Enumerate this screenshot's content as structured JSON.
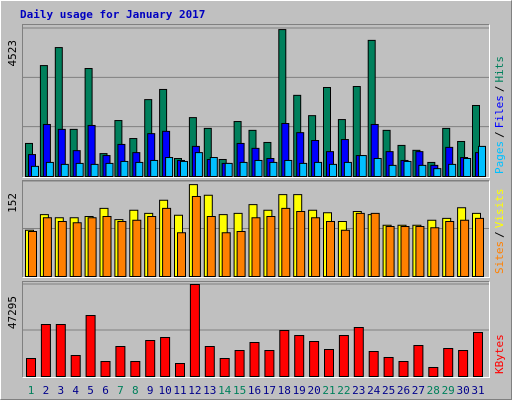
{
  "chart_data": [
    {
      "type": "bar",
      "title": "Daily usage for January 2017",
      "ylim": [
        0,
        4523
      ],
      "yticks": [
        4523
      ],
      "grid_divisions": 3,
      "legend_separator": "/",
      "series": [
        {
          "name": "Pages",
          "color": "#00c0ff",
          "values": [
            310,
            430,
            370,
            400,
            370,
            400,
            460,
            430,
            490,
            580,
            460,
            730,
            580,
            400,
            430,
            490,
            430,
            490,
            400,
            430,
            370,
            430,
            640,
            550,
            340,
            460,
            340,
            240,
            370,
            550,
            920
          ]
        },
        {
          "name": "Files",
          "color": "#0000ff",
          "values": [
            670,
            1590,
            1440,
            790,
            1560,
            640,
            980,
            730,
            1310,
            1380,
            490,
            920,
            520,
            400,
            1010,
            860,
            550,
            1620,
            1340,
            1100,
            760,
            1130,
            640,
            1590,
            760,
            490,
            760,
            340,
            890,
            580,
            730
          ]
        },
        {
          "name": "Hits",
          "color": "#00805c",
          "values": [
            1010,
            3390,
            3940,
            1440,
            3300,
            700,
            1710,
            1160,
            2350,
            2660,
            550,
            1800,
            1470,
            520,
            1680,
            1410,
            1040,
            4490,
            2480,
            1860,
            2720,
            1740,
            2750,
            4160,
            1410,
            950,
            800,
            430,
            1470,
            1070,
            2170
          ]
        }
      ]
    },
    {
      "type": "bar",
      "ylim": [
        0,
        152
      ],
      "yticks": [
        152
      ],
      "grid_divisions": 2,
      "legend_separator": "/",
      "series": [
        {
          "name": "Sites",
          "color": "#ff8000",
          "values": [
            72,
            94,
            88,
            86,
            94,
            96,
            88,
            90,
            96,
            109,
            70,
            128,
            96,
            70,
            72,
            94,
            96,
            109,
            104,
            94,
            88,
            74,
            101,
            101,
            80,
            80,
            80,
            78,
            88,
            90,
            93
          ]
        },
        {
          "name": "Visits",
          "color": "#ffff00",
          "values": [
            74,
            99,
            94,
            94,
            96,
            109,
            91,
            106,
            101,
            122,
            98,
            147,
            130,
            99,
            101,
            115,
            106,
            131,
            131,
            106,
            102,
            88,
            104,
            99,
            82,
            82,
            82,
            90,
            93,
            110,
            101
          ]
        }
      ]
    },
    {
      "type": "bar",
      "ylim": [
        0,
        47295
      ],
      "yticks": [
        47295
      ],
      "grid_divisions": 2,
      "categories": [
        "1",
        "2",
        "3",
        "4",
        "5",
        "6",
        "7",
        "8",
        "9",
        "10",
        "11",
        "12",
        "13",
        "14",
        "15",
        "16",
        "17",
        "18",
        "19",
        "20",
        "21",
        "22",
        "23",
        "24",
        "25",
        "26",
        "27",
        "28",
        "29",
        "30",
        "31"
      ],
      "category_colors": [
        "#00805c",
        "#00008b",
        "#00008b",
        "#00008b",
        "#00008b",
        "#00008b",
        "#00805c",
        "#00805c",
        "#00008b",
        "#00008b",
        "#00008b",
        "#00008b",
        "#00008b",
        "#00805c",
        "#00805c",
        "#00008b",
        "#00008b",
        "#00008b",
        "#00008b",
        "#00008b",
        "#00805c",
        "#00805c",
        "#00008b",
        "#00008b",
        "#00008b",
        "#00008b",
        "#00008b",
        "#00805c",
        "#00805c",
        "#00008b",
        "#00008b"
      ],
      "series": [
        {
          "name": "KBytes",
          "color": "#ff0000",
          "values": [
            9250,
            26730,
            26730,
            10790,
            31350,
            7710,
            15420,
            7710,
            18500,
            20050,
            6680,
            47295,
            15420,
            9250,
            13360,
            17480,
            13360,
            23640,
            21070,
            17990,
            13880,
            21070,
            25190,
            12850,
            9770,
            7710,
            15930,
            4630,
            14390,
            13360,
            22610
          ]
        }
      ]
    }
  ]
}
